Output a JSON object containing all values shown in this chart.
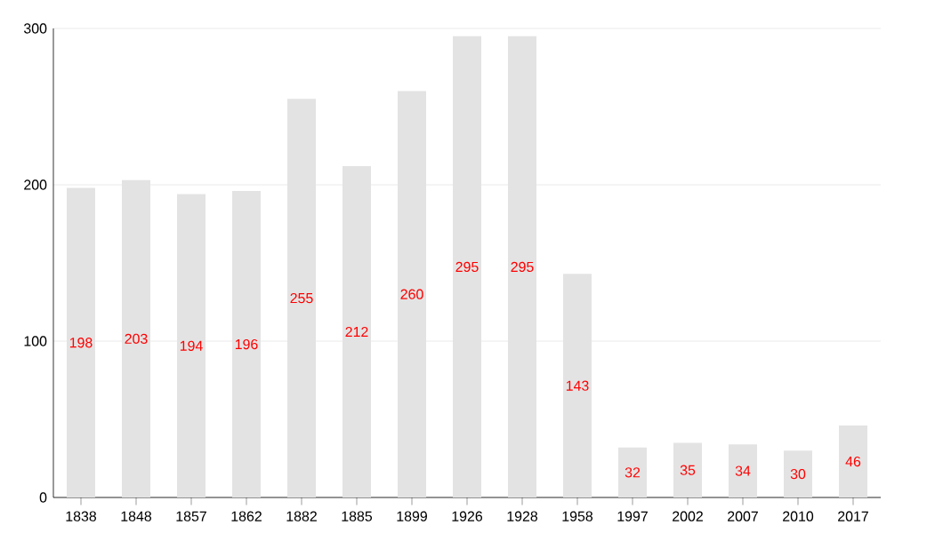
{
  "chart_data": {
    "type": "bar",
    "categories": [
      "1838",
      "1848",
      "1857",
      "1862",
      "1882",
      "1885",
      "1899",
      "1926",
      "1928",
      "1958",
      "1997",
      "2002",
      "2007",
      "2010",
      "2017"
    ],
    "values": [
      198,
      203,
      194,
      196,
      255,
      212,
      260,
      295,
      295,
      143,
      32,
      35,
      34,
      30,
      46
    ],
    "color": "#e3e3e3",
    "ylim": [
      0,
      300
    ],
    "yticks": [
      0,
      100,
      200,
      300
    ],
    "grid": "y",
    "data_labels": true
  }
}
